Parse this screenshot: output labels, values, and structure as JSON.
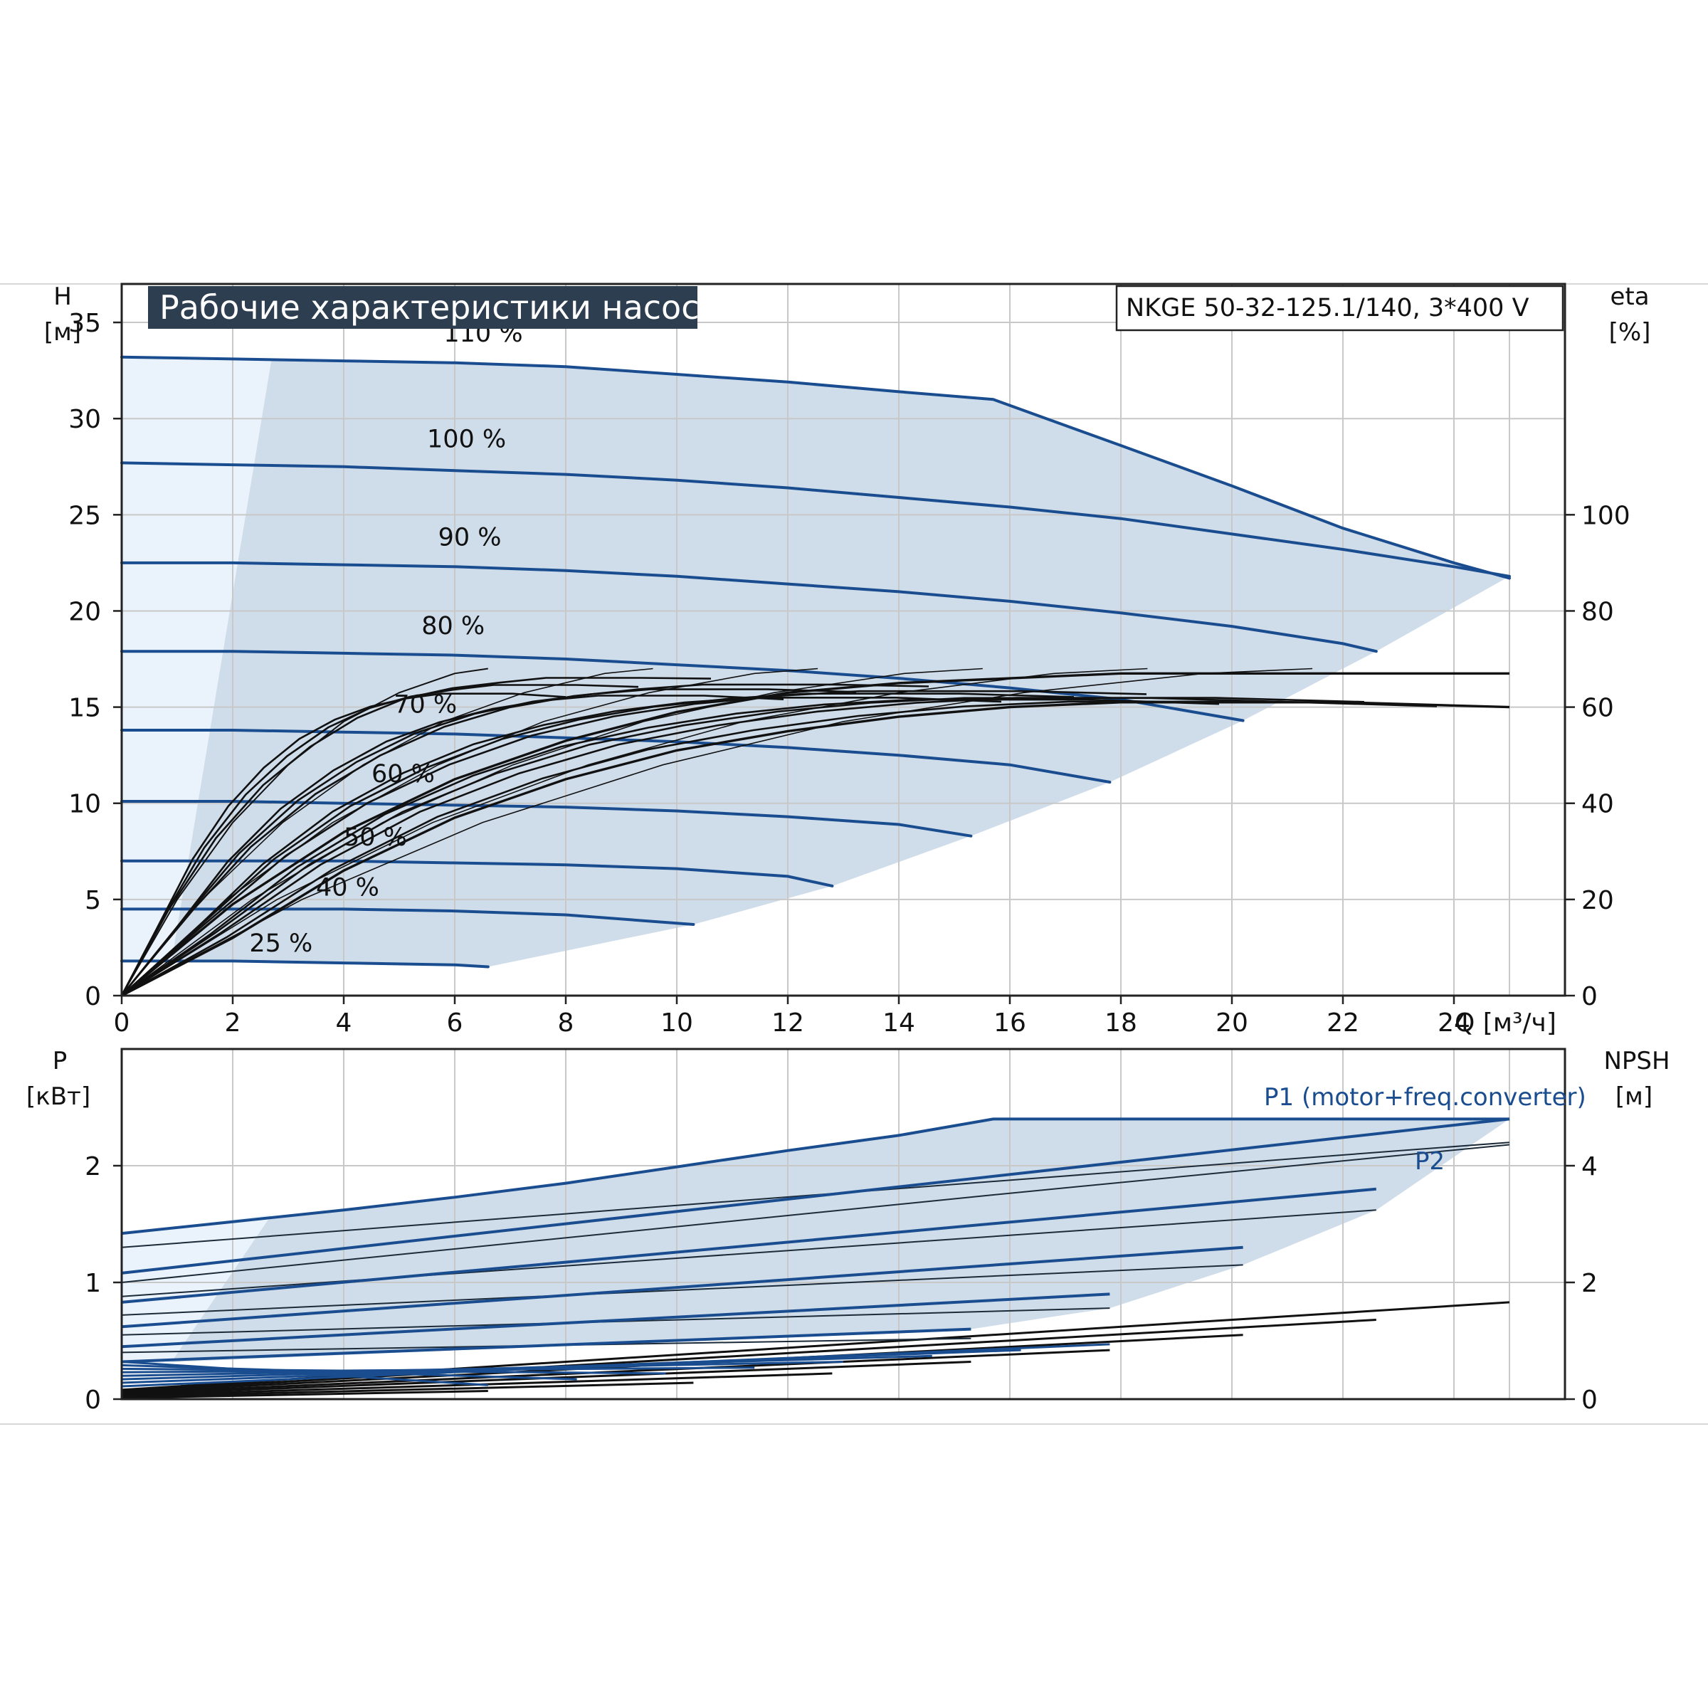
{
  "colors": {
    "curve_blue": "#1a4d8f",
    "area_fill": "#cfdcea",
    "area_light": "#eaf3fb",
    "grid": "#c8c8c8",
    "title_bg": "#2c3e50"
  },
  "header": {
    "title": "Рабочие характеристики насоса",
    "model": "NKGE 50-32-125.1/140, 3*400 V"
  },
  "chart_data": [
    {
      "type": "line",
      "panel": "head",
      "xlabel": "Q [м³/ч]",
      "ylabel_left": "H",
      "ylabel_left_unit": "[м]",
      "ylabel_right": "eta",
      "ylabel_right_unit": "[%]",
      "xlim": [
        0,
        26
      ],
      "ylim_left": [
        0,
        37
      ],
      "ylim_right_ticks": [
        0,
        20,
        40,
        60,
        80,
        100
      ],
      "x_ticks": [
        0,
        2,
        4,
        6,
        8,
        10,
        12,
        14,
        16,
        18,
        20,
        22,
        24
      ],
      "y_ticks_left": [
        0,
        5,
        10,
        15,
        20,
        25,
        30,
        35
      ],
      "grid": true,
      "series": [
        {
          "name": "110 %",
          "x": [
            0,
            2,
            4,
            6,
            8,
            10,
            12,
            14,
            15.7,
            18,
            20,
            22,
            24,
            25
          ],
          "y": [
            33.2,
            33.1,
            33.0,
            32.9,
            32.7,
            32.3,
            31.9,
            31.4,
            31.0,
            28.6,
            26.5,
            24.3,
            22.5,
            21.7
          ]
        },
        {
          "name": "100 %",
          "x": [
            0,
            2,
            4,
            6,
            8,
            10,
            12,
            14,
            16,
            18,
            20,
            22,
            24,
            25
          ],
          "y": [
            27.7,
            27.6,
            27.5,
            27.3,
            27.1,
            26.8,
            26.4,
            25.9,
            25.4,
            24.8,
            24.0,
            23.2,
            22.3,
            21.8
          ]
        },
        {
          "name": "90 %",
          "x": [
            0,
            2,
            4,
            6,
            8,
            10,
            12,
            14,
            16,
            18,
            20,
            22,
            22.6
          ],
          "y": [
            22.5,
            22.5,
            22.4,
            22.3,
            22.1,
            21.8,
            21.4,
            21.0,
            20.5,
            19.9,
            19.2,
            18.3,
            17.9
          ]
        },
        {
          "name": "80 %",
          "x": [
            0,
            2,
            4,
            6,
            8,
            10,
            12,
            14,
            16,
            18,
            20.2
          ],
          "y": [
            17.9,
            17.9,
            17.8,
            17.7,
            17.5,
            17.2,
            16.9,
            16.5,
            16.0,
            15.4,
            14.3
          ]
        },
        {
          "name": "70 %",
          "x": [
            0,
            2,
            4,
            6,
            8,
            10,
            12,
            14,
            16,
            17.8
          ],
          "y": [
            13.8,
            13.8,
            13.7,
            13.6,
            13.4,
            13.2,
            12.9,
            12.5,
            12.0,
            11.1
          ]
        },
        {
          "name": "60 %",
          "x": [
            0,
            2,
            4,
            6,
            8,
            10,
            12,
            14,
            15.3
          ],
          "y": [
            10.1,
            10.1,
            10.0,
            9.9,
            9.8,
            9.6,
            9.3,
            8.9,
            8.3
          ]
        },
        {
          "name": "50 %",
          "x": [
            0,
            2,
            4,
            6,
            8,
            10,
            12,
            12.8
          ],
          "y": [
            7.0,
            7.0,
            7.0,
            6.9,
            6.8,
            6.6,
            6.2,
            5.7
          ]
        },
        {
          "name": "40 %",
          "x": [
            0,
            2,
            4,
            6,
            8,
            10.3
          ],
          "y": [
            4.5,
            4.5,
            4.5,
            4.4,
            4.2,
            3.7
          ]
        },
        {
          "name": "25 %",
          "x": [
            0,
            2,
            4,
            6,
            6.6
          ],
          "y": [
            1.8,
            1.8,
            1.7,
            1.6,
            1.5
          ]
        }
      ],
      "efficiency_upper": {
        "x": [
          0,
          1,
          2,
          3,
          4,
          5,
          6,
          6.6
        ],
        "eta": [
          0,
          20,
          36,
          48,
          57,
          63,
          67,
          68
        ]
      },
      "efficiency_max_lower": {
        "x": [
          0,
          2,
          4,
          6,
          8,
          10,
          12,
          14,
          16,
          18,
          20,
          22,
          25
        ],
        "eta": [
          0,
          12,
          26,
          37,
          45,
          51,
          55,
          58,
          60,
          61,
          61,
          61,
          60
        ]
      },
      "efficiency_max_upper": {
        "x": [
          0,
          2,
          4,
          6,
          8,
          10,
          12,
          14,
          16,
          18,
          20,
          22,
          25
        ],
        "eta": [
          0,
          19,
          34,
          45,
          53,
          59,
          63,
          65,
          66,
          67,
          67,
          67,
          67
        ]
      },
      "curve_labels": [
        {
          "text": "110 %",
          "x": 5.8,
          "y": 34.0
        },
        {
          "text": "100 %",
          "x": 5.5,
          "y": 28.5
        },
        {
          "text": "90 %",
          "x": 5.7,
          "y": 23.4
        },
        {
          "text": "80 %",
          "x": 5.4,
          "y": 18.8
        },
        {
          "text": "70 %",
          "x": 4.9,
          "y": 14.7
        },
        {
          "text": "60 %",
          "x": 4.5,
          "y": 11.1
        },
        {
          "text": "50 %",
          "x": 4.0,
          "y": 7.8
        },
        {
          "text": "40 %",
          "x": 3.5,
          "y": 5.2
        },
        {
          "text": "25 %",
          "x": 2.3,
          "y": 2.3
        }
      ]
    },
    {
      "type": "line",
      "panel": "power",
      "ylabel_left": "P",
      "ylabel_left_unit": "[кВт]",
      "ylabel_right": "NPSH",
      "ylabel_right_unit": "[м]",
      "xlim": [
        0,
        26
      ],
      "ylim_left": [
        0,
        3.0
      ],
      "y_ticks_left": [
        0,
        1,
        2
      ],
      "y_ticks_right": [
        0,
        2,
        4
      ],
      "grid": true,
      "legend": [
        "P1 (motor+freq.converter)",
        "P2"
      ],
      "p1_max": {
        "x": [
          0,
          2,
          4,
          6,
          8,
          10,
          12,
          14,
          15.7,
          18,
          20,
          22,
          25
        ],
        "y": [
          1.42,
          1.52,
          1.62,
          1.73,
          1.85,
          1.99,
          2.13,
          2.26,
          2.4,
          2.4,
          2.4,
          2.4,
          2.4
        ]
      },
      "p1_100": {
        "x": [
          0,
          25
        ],
        "y": [
          1.08,
          2.4
        ]
      },
      "p1_90": {
        "x": [
          0,
          22.6
        ],
        "y": [
          0.83,
          1.8
        ]
      },
      "p1_80": {
        "x": [
          0,
          20.2
        ],
        "y": [
          0.62,
          1.3
        ]
      },
      "p1_70": {
        "x": [
          0,
          17.8
        ],
        "y": [
          0.45,
          0.9
        ]
      },
      "p1_60": {
        "x": [
          0,
          15.3
        ],
        "y": [
          0.32,
          0.6
        ]
      },
      "p2_lines": [
        {
          "x": [
            0,
            25
          ],
          "y": [
            1.3,
            2.2
          ]
        },
        {
          "x": [
            0,
            15.7,
            25
          ],
          "y": [
            1.0,
            1.75,
            2.18
          ]
        },
        {
          "x": [
            0,
            22.6
          ],
          "y": [
            0.88,
            1.62
          ]
        },
        {
          "x": [
            0,
            20.2
          ],
          "y": [
            0.72,
            1.15
          ]
        },
        {
          "x": [
            0,
            17.8
          ],
          "y": [
            0.55,
            0.78
          ]
        },
        {
          "x": [
            0,
            15.3
          ],
          "y": [
            0.4,
            0.52
          ]
        }
      ],
      "npsh_lines": [
        {
          "x": [
            0,
            25
          ],
          "y": [
            0.08,
            0.83
          ]
        },
        {
          "x": [
            0,
            22.6
          ],
          "y": [
            0.07,
            0.68
          ]
        },
        {
          "x": [
            0,
            20.2
          ],
          "y": [
            0.06,
            0.55
          ]
        },
        {
          "x": [
            0,
            17.8
          ],
          "y": [
            0.05,
            0.42
          ]
        },
        {
          "x": [
            0,
            15.3
          ],
          "y": [
            0.04,
            0.32
          ]
        },
        {
          "x": [
            0,
            12.8
          ],
          "y": [
            0.03,
            0.22
          ]
        },
        {
          "x": [
            0,
            10.3
          ],
          "y": [
            0.02,
            0.14
          ]
        },
        {
          "x": [
            0,
            6.6
          ],
          "y": [
            0.01,
            0.07
          ]
        }
      ]
    }
  ]
}
